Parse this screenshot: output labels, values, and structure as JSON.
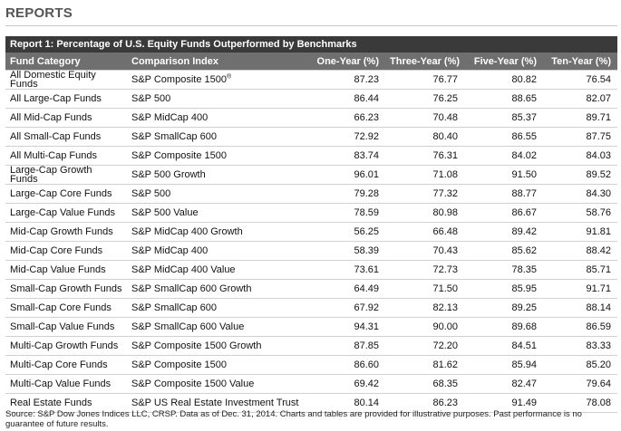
{
  "heading": "REPORTS",
  "report_title": "Report 1: Percentage of U.S. Equity Funds Outperformed by Benchmarks",
  "columns": [
    "Fund Category",
    "Comparison Index",
    "One-Year (%)",
    "Three-Year (%)",
    "Five-Year (%)",
    "Ten-Year (%)"
  ],
  "rows": [
    {
      "category": "All Domestic Equity Funds",
      "index": "S&P Composite 1500",
      "index_sup": "®",
      "one": "87.23",
      "three": "76.77",
      "five": "80.82",
      "ten": "76.54"
    },
    {
      "category": "All Large-Cap Funds",
      "index": "S&P 500",
      "index_sup": "",
      "one": "86.44",
      "three": "76.25",
      "five": "88.65",
      "ten": "82.07"
    },
    {
      "category": "All Mid-Cap Funds",
      "index": "S&P MidCap 400",
      "index_sup": "",
      "one": "66.23",
      "three": "70.48",
      "five": "85.37",
      "ten": "89.71"
    },
    {
      "category": "All Small-Cap Funds",
      "index": "S&P SmallCap 600",
      "index_sup": "",
      "one": "72.92",
      "three": "80.40",
      "five": "86.55",
      "ten": "87.75"
    },
    {
      "category": "All Multi-Cap Funds",
      "index": "S&P Composite 1500",
      "index_sup": "",
      "one": "83.74",
      "three": "76.31",
      "five": "84.02",
      "ten": "84.03"
    },
    {
      "category": "Large-Cap Growth Funds",
      "index": "S&P 500 Growth",
      "index_sup": "",
      "one": "96.01",
      "three": "71.08",
      "five": "91.50",
      "ten": "89.52"
    },
    {
      "category": "Large-Cap Core Funds",
      "index": "S&P 500",
      "index_sup": "",
      "one": "79.28",
      "three": "77.32",
      "five": "88.77",
      "ten": "84.30"
    },
    {
      "category": "Large-Cap Value Funds",
      "index": "S&P 500 Value",
      "index_sup": "",
      "one": "78.59",
      "three": "80.98",
      "five": "86.67",
      "ten": "58.76"
    },
    {
      "category": "Mid-Cap Growth Funds",
      "index": "S&P MidCap 400 Growth",
      "index_sup": "",
      "one": "56.25",
      "three": "66.48",
      "five": "89.42",
      "ten": "91.81"
    },
    {
      "category": "Mid-Cap Core Funds",
      "index": "S&P MidCap 400",
      "index_sup": "",
      "one": "58.39",
      "three": "70.43",
      "five": "85.62",
      "ten": "88.42"
    },
    {
      "category": "Mid-Cap Value Funds",
      "index": "S&P MidCap 400 Value",
      "index_sup": "",
      "one": "73.61",
      "three": "72.73",
      "five": "78.35",
      "ten": "85.71"
    },
    {
      "category": "Small-Cap Growth Funds",
      "index": "S&P SmallCap 600 Growth",
      "index_sup": "",
      "one": "64.49",
      "three": "71.50",
      "five": "85.95",
      "ten": "91.71"
    },
    {
      "category": "Small-Cap Core Funds",
      "index": "S&P SmallCap 600",
      "index_sup": "",
      "one": "67.92",
      "three": "82.13",
      "five": "89.25",
      "ten": "88.14"
    },
    {
      "category": "Small-Cap Value Funds",
      "index": "S&P SmallCap 600 Value",
      "index_sup": "",
      "one": "94.31",
      "three": "90.00",
      "five": "89.68",
      "ten": "86.59"
    },
    {
      "category": "Multi-Cap Growth Funds",
      "index": "S&P Composite 1500 Growth",
      "index_sup": "",
      "one": "87.85",
      "three": "72.20",
      "five": "84.51",
      "ten": "83.33"
    },
    {
      "category": "Multi-Cap Core Funds",
      "index": "S&P Composite 1500",
      "index_sup": "",
      "one": "86.60",
      "three": "81.62",
      "five": "85.94",
      "ten": "85.20"
    },
    {
      "category": "Multi-Cap Value Funds",
      "index": "S&P Composite 1500 Value",
      "index_sup": "",
      "one": "69.42",
      "three": "68.35",
      "five": "82.47",
      "ten": "79.64"
    },
    {
      "category": "Real Estate Funds",
      "index": "S&P US Real Estate Investment Trust",
      "index_sup": "",
      "one": "80.14",
      "three": "86.23",
      "five": "91.49",
      "ten": "78.08"
    }
  ],
  "footnote": "Source: S&P Dow Jones Indices LLC, CRSP.  Data as of Dec. 31, 2014.  Charts and tables are provided for illustrative purposes.  Past performance is no guarantee of future results.",
  "colors": {
    "title_bg": "#3a3a3a",
    "header_bg": "#6f6f6f",
    "heading_text": "#555555",
    "row_rule": "#d0d0d0"
  }
}
